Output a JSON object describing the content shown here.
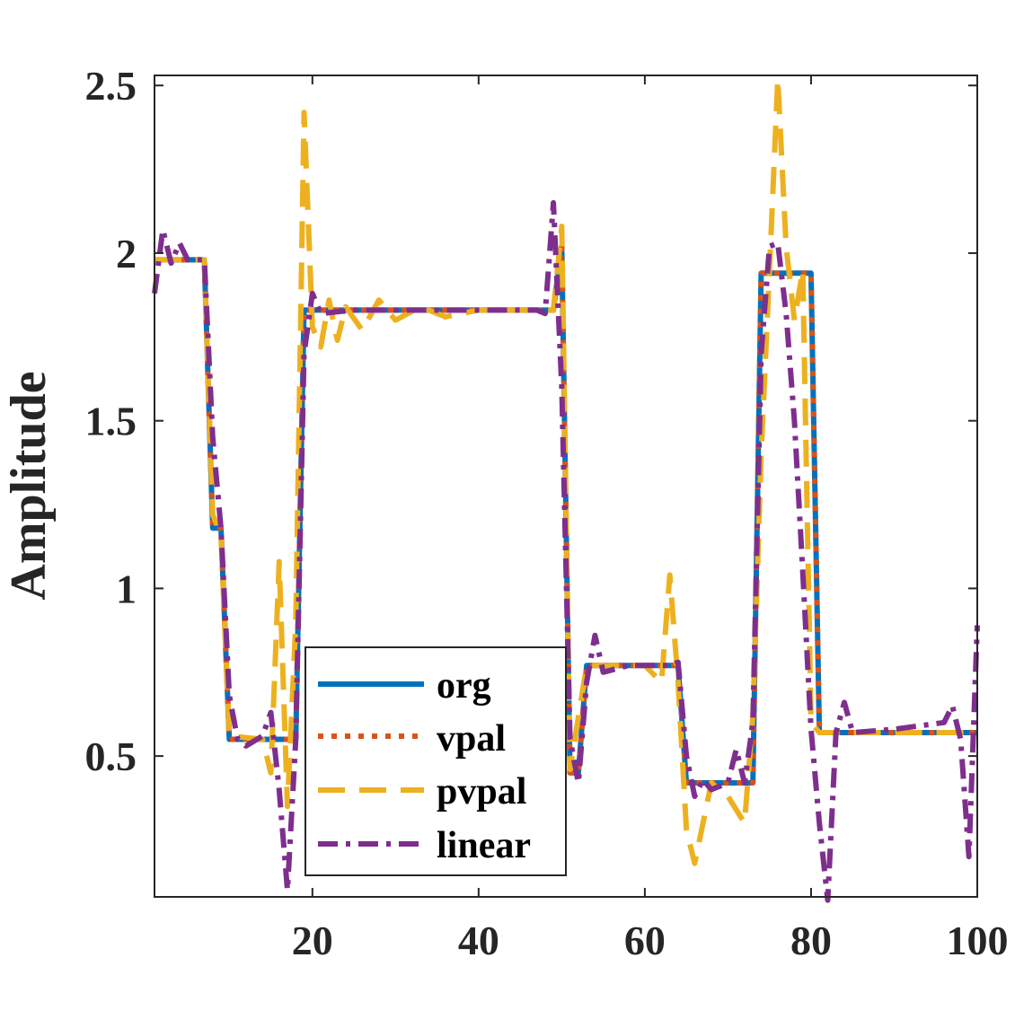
{
  "chart_data": {
    "type": "line",
    "title": "",
    "xlabel": "",
    "ylabel": "Amplitude",
    "xlim": [
      1,
      100
    ],
    "ylim": [
      0.08,
      2.53
    ],
    "xticks": [
      20,
      40,
      60,
      80,
      100
    ],
    "xtick_labels": [
      "20",
      "40",
      "60",
      "80",
      "100"
    ],
    "yticks": [
      0.5,
      1,
      1.5,
      2,
      2.5
    ],
    "ytick_labels": [
      "0.5",
      "1",
      "1.5",
      "2",
      "2.5"
    ],
    "legend_position": "bottom-center",
    "series": [
      {
        "name": "org",
        "color": "#0072BD",
        "dash": "solid",
        "points": [
          [
            1,
            1.98
          ],
          [
            7,
            1.98
          ],
          [
            8,
            1.18
          ],
          [
            9,
            1.18
          ],
          [
            10,
            0.55
          ],
          [
            18,
            0.55
          ],
          [
            19,
            1.83
          ],
          [
            49,
            1.83
          ],
          [
            50,
            2.02
          ],
          [
            51,
            0.45
          ],
          [
            52,
            0.45
          ],
          [
            53,
            0.77
          ],
          [
            64,
            0.77
          ],
          [
            65,
            0.42
          ],
          [
            73,
            0.42
          ],
          [
            74,
            1.94
          ],
          [
            80,
            1.94
          ],
          [
            81,
            0.57
          ],
          [
            100,
            0.57
          ]
        ]
      },
      {
        "name": "vpal",
        "color": "#D95319",
        "dash": "dot",
        "points": [
          [
            1,
            1.98
          ],
          [
            7,
            1.98
          ],
          [
            8,
            1.18
          ],
          [
            9,
            1.18
          ],
          [
            10,
            0.55
          ],
          [
            18,
            0.55
          ],
          [
            19,
            1.83
          ],
          [
            49,
            1.83
          ],
          [
            50,
            2.02
          ],
          [
            51,
            0.45
          ],
          [
            52,
            0.45
          ],
          [
            53,
            0.77
          ],
          [
            64,
            0.77
          ],
          [
            65,
            0.42
          ],
          [
            73,
            0.42
          ],
          [
            74,
            1.94
          ],
          [
            80,
            1.94
          ],
          [
            81,
            0.57
          ],
          [
            100,
            0.57
          ]
        ]
      },
      {
        "name": "pvpal",
        "color": "#EDB120",
        "dash": "dash",
        "points": [
          [
            1,
            1.98
          ],
          [
            7,
            1.98
          ],
          [
            8,
            1.22
          ],
          [
            9,
            1.16
          ],
          [
            10,
            0.56
          ],
          [
            14,
            0.55
          ],
          [
            15,
            0.45
          ],
          [
            16,
            1.08
          ],
          [
            17,
            0.35
          ],
          [
            18,
            0.9
          ],
          [
            19,
            2.42
          ],
          [
            20,
            1.78
          ],
          [
            21,
            1.72
          ],
          [
            22,
            1.86
          ],
          [
            23,
            1.74
          ],
          [
            24,
            1.84
          ],
          [
            26,
            1.77
          ],
          [
            28,
            1.86
          ],
          [
            30,
            1.8
          ],
          [
            33,
            1.84
          ],
          [
            36,
            1.81
          ],
          [
            40,
            1.83
          ],
          [
            49,
            1.83
          ],
          [
            50,
            2.08
          ],
          [
            51,
            0.46
          ],
          [
            53,
            0.77
          ],
          [
            60,
            0.77
          ],
          [
            62,
            0.72
          ],
          [
            63,
            1.04
          ],
          [
            64,
            0.72
          ],
          [
            65,
            0.28
          ],
          [
            66,
            0.18
          ],
          [
            68,
            0.42
          ],
          [
            70,
            0.38
          ],
          [
            72,
            0.3
          ],
          [
            73,
            0.62
          ],
          [
            74,
            1.4
          ],
          [
            75,
            1.95
          ],
          [
            76,
            2.52
          ],
          [
            77,
            2.02
          ],
          [
            78,
            1.8
          ],
          [
            79,
            1.95
          ],
          [
            80,
            0.6
          ],
          [
            81,
            0.57
          ],
          [
            100,
            0.57
          ]
        ]
      },
      {
        "name": "linear",
        "color": "#7E2F8E",
        "dash": "dashdot",
        "points": [
          [
            1,
            1.88
          ],
          [
            2,
            2.07
          ],
          [
            3,
            1.97
          ],
          [
            4,
            2.03
          ],
          [
            5,
            1.98
          ],
          [
            7,
            1.98
          ],
          [
            8,
            1.45
          ],
          [
            9,
            1.18
          ],
          [
            10,
            0.68
          ],
          [
            11,
            0.55
          ],
          [
            12,
            0.53
          ],
          [
            14,
            0.56
          ],
          [
            15,
            0.63
          ],
          [
            16,
            0.4
          ],
          [
            17,
            0.1
          ],
          [
            18,
            0.55
          ],
          [
            19,
            1.7
          ],
          [
            20,
            1.88
          ],
          [
            21,
            1.82
          ],
          [
            25,
            1.83
          ],
          [
            47,
            1.83
          ],
          [
            48,
            1.82
          ],
          [
            49,
            2.15
          ],
          [
            50,
            1.6
          ],
          [
            51,
            0.55
          ],
          [
            52,
            0.42
          ],
          [
            53,
            0.72
          ],
          [
            54,
            0.86
          ],
          [
            55,
            0.75
          ],
          [
            58,
            0.77
          ],
          [
            63,
            0.77
          ],
          [
            64,
            0.78
          ],
          [
            65,
            0.5
          ],
          [
            66,
            0.38
          ],
          [
            67,
            0.43
          ],
          [
            68,
            0.4
          ],
          [
            70,
            0.42
          ],
          [
            71,
            0.52
          ],
          [
            72,
            0.42
          ],
          [
            73,
            0.6
          ],
          [
            74,
            1.7
          ],
          [
            75,
            2.02
          ],
          [
            76,
            2.03
          ],
          [
            77,
            1.82
          ],
          [
            78,
            1.5
          ],
          [
            79,
            1.05
          ],
          [
            80,
            0.58
          ],
          [
            81,
            0.3
          ],
          [
            82,
            0.07
          ],
          [
            83,
            0.57
          ],
          [
            84,
            0.66
          ],
          [
            85,
            0.57
          ],
          [
            90,
            0.58
          ],
          [
            96,
            0.6
          ],
          [
            97,
            0.65
          ],
          [
            98,
            0.55
          ],
          [
            99,
            0.2
          ],
          [
            100,
            0.89
          ]
        ]
      }
    ]
  }
}
